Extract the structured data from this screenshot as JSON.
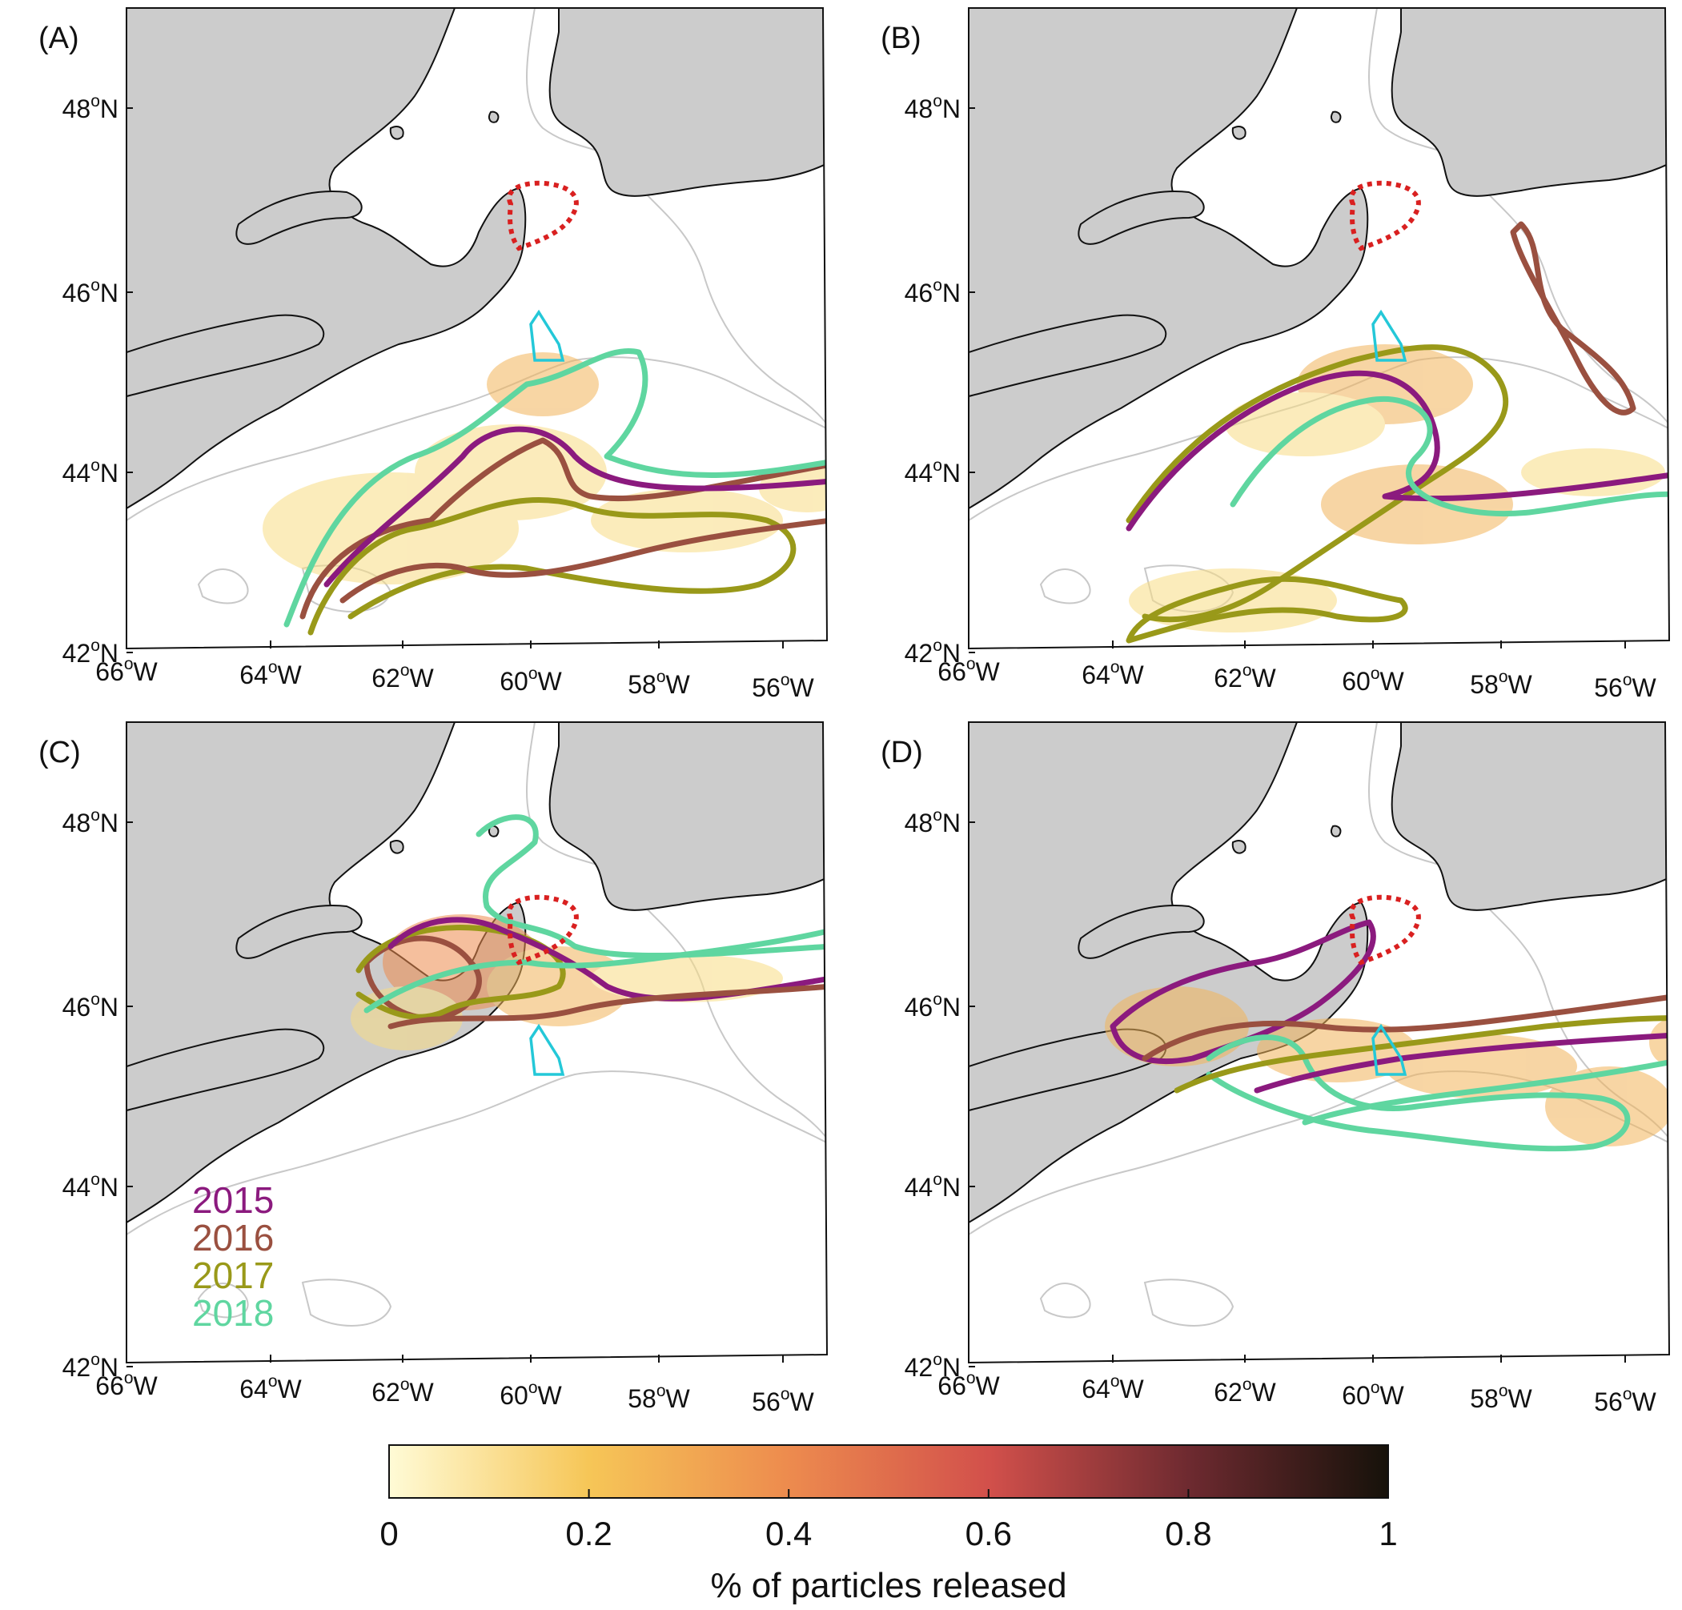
{
  "panels": [
    {
      "label": "(A)"
    },
    {
      "label": "(B)"
    },
    {
      "label": "(C)"
    },
    {
      "label": "(D)"
    }
  ],
  "lat_ticks": [
    {
      "deg": "48",
      "hemi": "N"
    },
    {
      "deg": "46",
      "hemi": "N"
    },
    {
      "deg": "44",
      "hemi": "N"
    },
    {
      "deg": "42",
      "hemi": "N"
    }
  ],
  "lon_ticks": [
    {
      "deg": "66",
      "hemi": "W"
    },
    {
      "deg": "64",
      "hemi": "W"
    },
    {
      "deg": "62",
      "hemi": "W"
    },
    {
      "deg": "60",
      "hemi": "W"
    },
    {
      "deg": "58",
      "hemi": "W"
    },
    {
      "deg": "56",
      "hemi": "W"
    }
  ],
  "degree_symbol": "o",
  "years": [
    {
      "label": "2015",
      "color": "#8b1a7e"
    },
    {
      "label": "2016",
      "color": "#9a5040"
    },
    {
      "label": "2017",
      "color": "#999919"
    },
    {
      "label": "2018",
      "color": "#5fd6a0"
    }
  ],
  "colorbar": {
    "ticks": [
      "0",
      "0.2",
      "0.4",
      "0.6",
      "0.8",
      "1"
    ],
    "title": "% of particles released",
    "colors": [
      "#fffbd6",
      "#f6c657",
      "#ed8b4e",
      "#d2504b",
      "#6e2a30",
      "#16120a"
    ]
  },
  "colors": {
    "land": "#cccccc",
    "isobath": "#c8c8c8",
    "release_area": "#24c8d8",
    "target_area": "#d92020"
  }
}
